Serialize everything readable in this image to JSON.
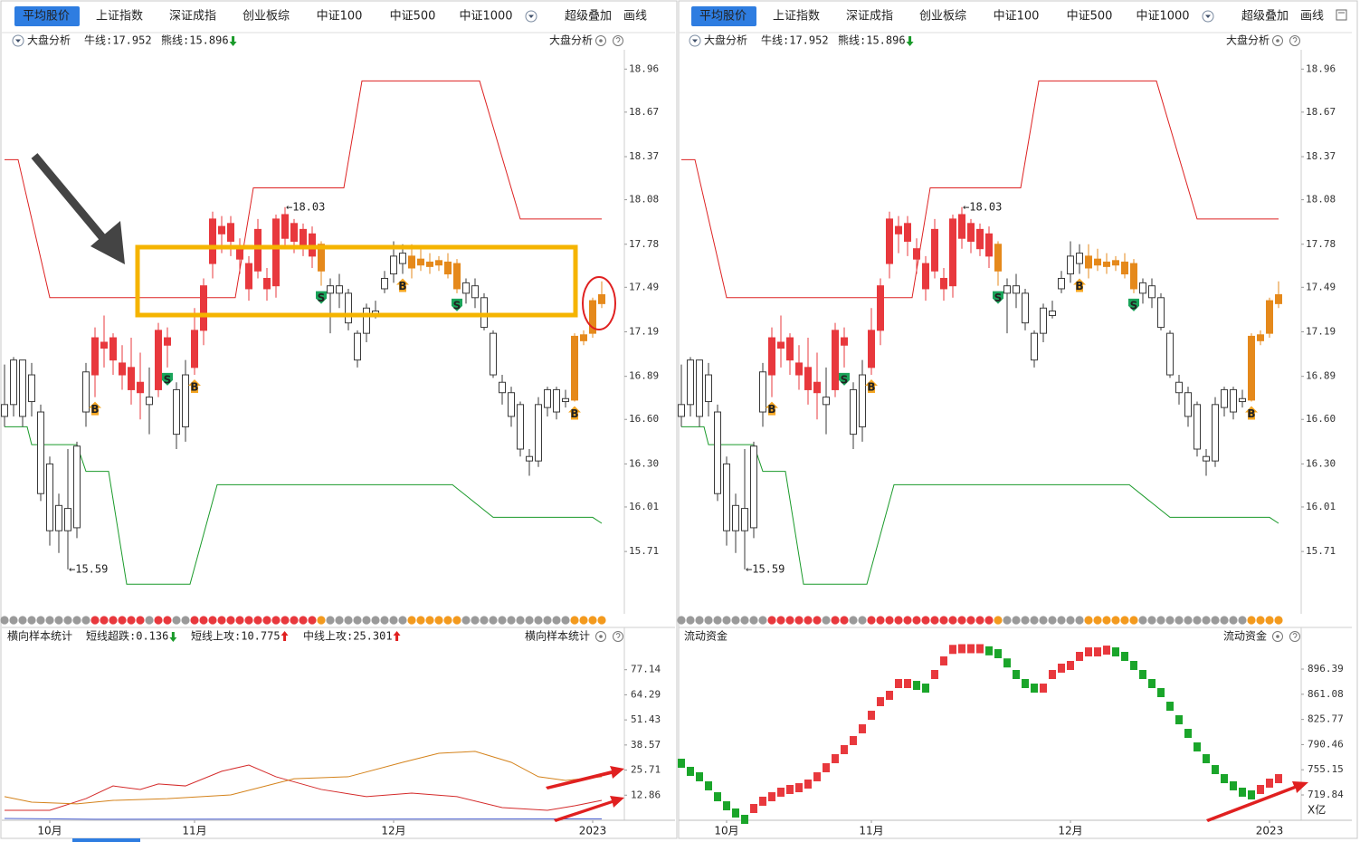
{
  "tabs": [
    "平均股价",
    "上证指数",
    "深证成指",
    "创业板综",
    "中证100",
    "中证500",
    "中证1000",
    "超级叠加",
    "画线"
  ],
  "active_tab": 0,
  "price_chart": {
    "title": "大盘分析",
    "bull_text": "牛线:17.952",
    "bear_text": "熊线:15.896",
    "ylim": [
      15.29,
      19.09
    ],
    "yticks": [
      18.96,
      18.67,
      18.37,
      18.08,
      17.78,
      17.49,
      17.19,
      16.89,
      {
        "value": 16.6,
        "label": "16.60"
      },
      {
        "value": 16.3,
        "label": "16.30"
      },
      16.01,
      15.71
    ],
    "candles": [
      [
        16.62,
        16.7,
        16.97,
        16.55
      ],
      [
        16.7,
        17.0,
        17.02,
        16.62
      ],
      [
        17.0,
        16.62,
        17.0,
        16.55
      ],
      [
        16.9,
        16.72,
        16.98,
        16.62
      ],
      [
        16.65,
        16.1,
        16.7,
        16.05
      ],
      [
        16.3,
        15.85,
        16.35,
        15.75
      ],
      [
        15.85,
        16.02,
        16.1,
        15.7
      ],
      [
        16.0,
        15.85,
        16.4,
        15.59
      ],
      [
        15.87,
        16.42,
        16.45,
        15.8
      ],
      [
        16.65,
        16.92,
        16.98,
        16.55
      ],
      [
        16.9,
        17.15,
        17.22,
        16.75
      ],
      [
        17.12,
        17.08,
        17.3,
        16.95
      ],
      [
        17.15,
        17.0,
        17.18,
        16.9
      ],
      [
        16.98,
        16.9,
        17.1,
        16.8
      ],
      [
        16.95,
        16.8,
        17.15,
        16.7
      ],
      [
        16.85,
        16.78,
        17.05,
        16.6
      ],
      [
        16.75,
        16.7,
        16.95,
        16.5
      ],
      [
        16.8,
        17.2,
        17.25,
        16.75
      ],
      [
        17.15,
        17.1,
        17.22,
        16.95
      ],
      [
        16.8,
        16.5,
        16.85,
        16.4
      ],
      [
        16.55,
        16.9,
        17.0,
        16.45
      ],
      [
        16.95,
        17.2,
        17.35,
        16.9
      ],
      [
        17.2,
        17.5,
        17.55,
        17.1
      ],
      [
        17.65,
        17.95,
        18.0,
        17.55
      ],
      [
        17.9,
        17.85,
        17.97,
        17.72
      ],
      [
        17.92,
        17.8,
        17.97,
        17.7
      ],
      [
        17.75,
        17.68,
        17.82,
        17.58
      ],
      [
        17.65,
        17.48,
        17.7,
        17.4
      ],
      [
        17.88,
        17.6,
        17.95,
        17.55
      ],
      [
        17.55,
        17.48,
        17.62,
        17.4
      ],
      [
        17.5,
        17.95,
        17.98,
        17.42
      ],
      [
        17.98,
        17.82,
        18.03,
        17.75
      ],
      [
        17.92,
        17.8,
        17.95,
        17.72
      ],
      [
        17.88,
        17.75,
        17.92,
        17.7
      ],
      [
        17.85,
        17.7,
        17.9,
        17.62
      ],
      [
        17.78,
        17.6,
        17.8,
        17.5
      ],
      [
        17.5,
        17.45,
        17.55,
        17.18
      ],
      [
        17.5,
        17.45,
        17.58,
        17.35
      ],
      [
        17.45,
        17.25,
        17.48,
        17.2
      ],
      [
        17.18,
        17.0,
        17.2,
        16.95
      ],
      [
        17.35,
        17.18,
        17.38,
        17.12
      ],
      [
        17.33,
        17.3,
        17.4,
        17.28
      ],
      [
        17.55,
        17.48,
        17.6,
        17.45
      ],
      [
        17.7,
        17.58,
        17.8,
        17.52
      ],
      [
        17.72,
        17.65,
        17.78,
        17.58
      ],
      [
        17.7,
        17.62,
        17.78,
        17.55
      ],
      [
        17.68,
        17.64,
        17.75,
        17.6
      ],
      [
        17.66,
        17.63,
        17.72,
        17.58
      ],
      [
        17.67,
        17.64,
        17.7,
        17.6
      ],
      [
        17.66,
        17.58,
        17.72,
        17.55
      ],
      [
        17.65,
        17.48,
        17.68,
        17.45
      ],
      [
        17.52,
        17.45,
        17.55,
        17.38
      ],
      [
        17.5,
        17.42,
        17.55,
        17.35
      ],
      [
        17.42,
        17.22,
        17.45,
        17.2
      ],
      [
        17.18,
        16.9,
        17.2,
        16.88
      ],
      [
        16.85,
        16.78,
        16.9,
        16.7
      ],
      [
        16.78,
        16.62,
        16.82,
        16.55
      ],
      [
        16.7,
        16.4,
        16.72,
        16.35
      ],
      [
        16.35,
        16.32,
        16.4,
        16.22
      ],
      [
        16.32,
        16.7,
        16.75,
        16.28
      ],
      [
        16.8,
        16.68,
        16.82,
        16.62
      ],
      [
        16.8,
        16.65,
        16.82,
        16.6
      ],
      [
        16.72,
        16.74,
        16.8,
        16.68
      ],
      [
        16.73,
        17.16,
        17.18,
        16.72
      ],
      [
        17.13,
        17.17,
        17.2,
        17.1
      ],
      [
        17.18,
        17.4,
        17.42,
        17.15
      ],
      [
        17.44,
        17.38,
        17.53,
        17.35
      ]
    ],
    "states": [
      "k",
      "k",
      "k",
      "k",
      "k",
      "k",
      "k",
      "k",
      "k",
      "k",
      "r",
      "r",
      "r",
      "r",
      "r",
      "r",
      "k",
      "r",
      "r",
      "k",
      "k",
      "r",
      "r",
      "r",
      "r",
      "r",
      "r",
      "r",
      "r",
      "r",
      "r",
      "r",
      "r",
      "r",
      "r",
      "o",
      "k",
      "k",
      "k",
      "k",
      "k",
      "k",
      "k",
      "k",
      "k",
      "o",
      "o",
      "o",
      "o",
      "o",
      "o",
      "k",
      "k",
      "k",
      "k",
      "k",
      "k",
      "k",
      "k",
      "k",
      "k",
      "k",
      "k",
      "o",
      "o",
      "o",
      "o"
    ],
    "palette": {
      "r": "#e8383d",
      "o": "#e5891b",
      "k": "#3a3a3a"
    },
    "dot_palette": {
      "r": "#e8383d",
      "o": "#f39a1e",
      "k": "#9a9a9a"
    },
    "bull_line": {
      "color": "#dd2222",
      "x": [
        0,
        1.5,
        5,
        25.5,
        27.5,
        37.5,
        39.5,
        52.5,
        57,
        66
      ],
      "values": [
        18.35,
        18.35,
        17.42,
        17.42,
        18.16,
        18.16,
        18.88,
        18.88,
        17.95,
        17.95
      ]
    },
    "bear_line": {
      "color": "#1a9a2a",
      "x": [
        0,
        2.5,
        3,
        8,
        9,
        11.5,
        13.5,
        20.5,
        23.5,
        49.5,
        54,
        65,
        66
      ],
      "values": [
        16.55,
        16.55,
        16.43,
        16.43,
        16.25,
        16.25,
        15.49,
        15.49,
        16.16,
        16.16,
        15.94,
        15.94,
        15.9
      ]
    },
    "high_label": {
      "index": 31,
      "text": "←18.03"
    },
    "low_label": {
      "index": 7,
      "text": "←15.59"
    },
    "signals": [
      {
        "index": 10,
        "label": "B"
      },
      {
        "index": 18,
        "label": "S"
      },
      {
        "index": 21,
        "label": "B"
      },
      {
        "index": 35,
        "label": "S"
      },
      {
        "index": 44,
        "label": "B"
      },
      {
        "index": 50,
        "label": "S"
      },
      {
        "index": 63,
        "label": "B"
      }
    ]
  },
  "x_axis": {
    "labels": [
      "10月",
      "11月",
      "12月",
      "2023"
    ],
    "index": [
      5,
      21,
      43,
      65
    ]
  },
  "left_lower": {
    "title": "横向样本统计",
    "ylim": [
      0,
      88.6
    ],
    "yticks": [
      77.14,
      64.29,
      51.43,
      38.57,
      25.71,
      12.86
    ],
    "series": [
      {
        "name": "短线超跌:0.136",
        "color": "#4a5fd0",
        "arrow": "down",
        "x": [
          0,
          10,
          66
        ],
        "values": [
          0.9,
          0.5,
          0.7
        ]
      },
      {
        "name": "短线上攻:10.775",
        "color": "#d42a2a",
        "arrow": "up",
        "x": [
          0,
          5,
          9,
          12,
          15,
          17,
          20,
          24,
          27,
          30,
          35,
          40,
          45,
          50,
          55,
          60,
          63,
          66
        ],
        "values": [
          5.1,
          5.1,
          11.1,
          17.6,
          15.8,
          18.6,
          17.6,
          25.1,
          28.3,
          22.3,
          15.8,
          12.1,
          13.9,
          12.1,
          6.5,
          5.1,
          7.4,
          10.2
        ]
      },
      {
        "name": "中线上攻:25.301",
        "color": "#d4821a",
        "arrow": "up",
        "x": [
          0,
          3,
          8,
          12,
          18,
          25,
          32,
          38,
          44,
          48,
          52,
          56,
          59,
          62,
          66
        ],
        "values": [
          12.1,
          9.3,
          8.4,
          10.2,
          11.1,
          13,
          21.3,
          22.3,
          29.7,
          34.3,
          35.3,
          29.7,
          22.3,
          20.4,
          22.3
        ]
      }
    ]
  },
  "right_lower": {
    "title": "流动资金",
    "unit": "X亿",
    "ylim": [
      684.3,
      926.9
    ],
    "yticks": [
      896.39,
      861.08,
      825.77,
      790.46,
      755.15,
      719.84
    ],
    "up_color": "#e8383d",
    "down_color": "#1aa52a",
    "values": [
      764.3,
      752.9,
      745.3,
      732.6,
      717.3,
      704.6,
      694.5,
      685.6,
      700.8,
      711,
      717.3,
      723.7,
      727.5,
      730,
      735.1,
      745.3,
      758,
      770.7,
      783.4,
      796.1,
      812.6,
      831.6,
      850.7,
      859.6,
      876.1,
      876.1,
      873.5,
      869.7,
      888.8,
      907.8,
      924,
      925,
      925,
      925,
      922,
      918,
      905,
      888.8,
      876.1,
      869.7,
      869.7,
      888.8,
      897.7,
      901.5,
      914.2,
      920.5,
      920.5,
      923,
      920.5,
      914.2,
      901.5,
      888.8,
      876.1,
      863.4,
      844.3,
      825.3,
      806.2,
      787.2,
      770.7,
      755.4,
      742.7,
      732.6,
      723.7,
      719.9,
      727.5,
      736.4,
      742.7
    ]
  }
}
